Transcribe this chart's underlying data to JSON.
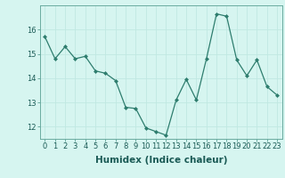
{
  "x": [
    0,
    1,
    2,
    3,
    4,
    5,
    6,
    7,
    8,
    9,
    10,
    11,
    12,
    13,
    14,
    15,
    16,
    17,
    18,
    19,
    20,
    21,
    22,
    23
  ],
  "y": [
    15.7,
    14.8,
    15.3,
    14.8,
    14.9,
    14.3,
    14.2,
    13.9,
    12.8,
    12.75,
    11.95,
    11.8,
    11.65,
    13.1,
    13.95,
    13.1,
    14.8,
    16.65,
    16.55,
    14.75,
    14.1,
    14.75,
    13.65,
    13.3
  ],
  "xlabel": "Humidex (Indice chaleur)",
  "ylim": [
    11.5,
    17.0
  ],
  "xlim": [
    -0.5,
    23.5
  ],
  "line_color": "#2e7d6e",
  "marker": "D",
  "marker_size": 2.0,
  "bg_color": "#d6f5f0",
  "grid_color": "#c0e8e2",
  "yticks": [
    12,
    13,
    14,
    15,
    16
  ],
  "xlabel_fontsize": 7.5,
  "tick_fontsize": 6.0,
  "spine_color": "#6aaba0",
  "line_width": 0.9
}
